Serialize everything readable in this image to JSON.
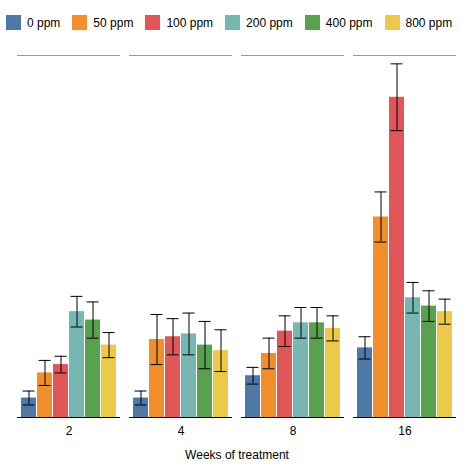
{
  "chart_data": {
    "type": "bar",
    "categories": [
      "2",
      "4",
      "8",
      "16"
    ],
    "xlabel": "Weeks of treatment",
    "series": [
      {
        "name": "0 ppm",
        "values": [
          0.7,
          0.7,
          1.5,
          2.5
        ],
        "errors": [
          0.25,
          0.25,
          0.3,
          0.4
        ]
      },
      {
        "name": "50 ppm",
        "values": [
          1.6,
          2.8,
          2.3,
          7.2
        ],
        "errors": [
          0.45,
          0.9,
          0.55,
          0.9
        ]
      },
      {
        "name": "100 ppm",
        "values": [
          1.9,
          2.9,
          3.1,
          11.5
        ],
        "errors": [
          0.3,
          0.65,
          0.55,
          1.2
        ]
      },
      {
        "name": "200 ppm",
        "values": [
          3.8,
          3.0,
          3.4,
          4.3
        ],
        "errors": [
          0.55,
          0.75,
          0.55,
          0.55
        ]
      },
      {
        "name": "400 ppm",
        "values": [
          3.5,
          2.6,
          3.4,
          4.0
        ],
        "errors": [
          0.65,
          0.85,
          0.55,
          0.55
        ]
      },
      {
        "name": "800 ppm",
        "values": [
          2.6,
          2.4,
          3.2,
          3.8
        ],
        "errors": [
          0.45,
          0.75,
          0.45,
          0.45
        ]
      }
    ],
    "ylim": [
      0,
      13
    ],
    "tick_labels": "x",
    "legend": "upper left"
  }
}
